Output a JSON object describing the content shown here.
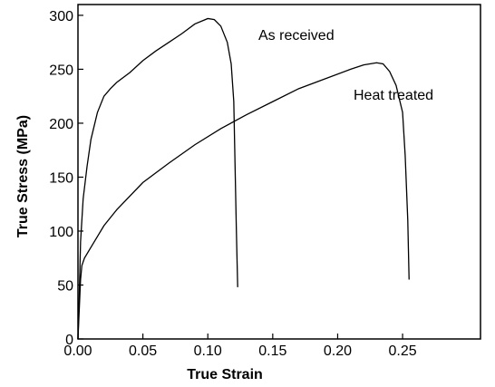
{
  "chart_data": {
    "type": "line",
    "x_label": "True Strain",
    "y_label": "True Stress (MPa)",
    "xlim": [
      0,
      0.31
    ],
    "ylim": [
      0,
      310
    ],
    "xticks": [
      {
        "value": 0,
        "label": "0.00"
      },
      {
        "value": 0.05,
        "label": "0.05"
      },
      {
        "value": 0.1,
        "label": "0.10"
      },
      {
        "value": 0.15,
        "label": "0.15"
      },
      {
        "value": 0.2,
        "label": "0.20"
      },
      {
        "value": 0.25,
        "label": "0.25"
      }
    ],
    "yticks": [
      0,
      50,
      100,
      150,
      200,
      250,
      300
    ],
    "series": [
      {
        "name": "As received",
        "color": "#000000",
        "x": [
          0,
          0.001,
          0.002,
          0.004,
          0.007,
          0.01,
          0.015,
          0.02,
          0.025,
          0.03,
          0.04,
          0.05,
          0.06,
          0.07,
          0.08,
          0.09,
          0.1,
          0.105,
          0.11,
          0.115,
          0.118,
          0.12,
          0.121,
          0.122,
          0.123
        ],
        "values": [
          0,
          40,
          90,
          130,
          160,
          185,
          210,
          225,
          232,
          238,
          247,
          258,
          267,
          275,
          283,
          292,
          297,
          296,
          290,
          275,
          255,
          220,
          160,
          100,
          48
        ]
      },
      {
        "name": "Heat treated",
        "color": "#000000",
        "x": [
          0,
          0.002,
          0.003,
          0.005,
          0.01,
          0.02,
          0.03,
          0.05,
          0.07,
          0.09,
          0.11,
          0.13,
          0.15,
          0.17,
          0.19,
          0.21,
          0.22,
          0.23,
          0.235,
          0.24,
          0.245,
          0.25,
          0.252,
          0.254,
          0.255
        ],
        "values": [
          0,
          55,
          68,
          75,
          85,
          105,
          120,
          145,
          163,
          180,
          195,
          208,
          220,
          232,
          241,
          250,
          254,
          256,
          255,
          248,
          235,
          210,
          170,
          110,
          55
        ]
      }
    ]
  }
}
